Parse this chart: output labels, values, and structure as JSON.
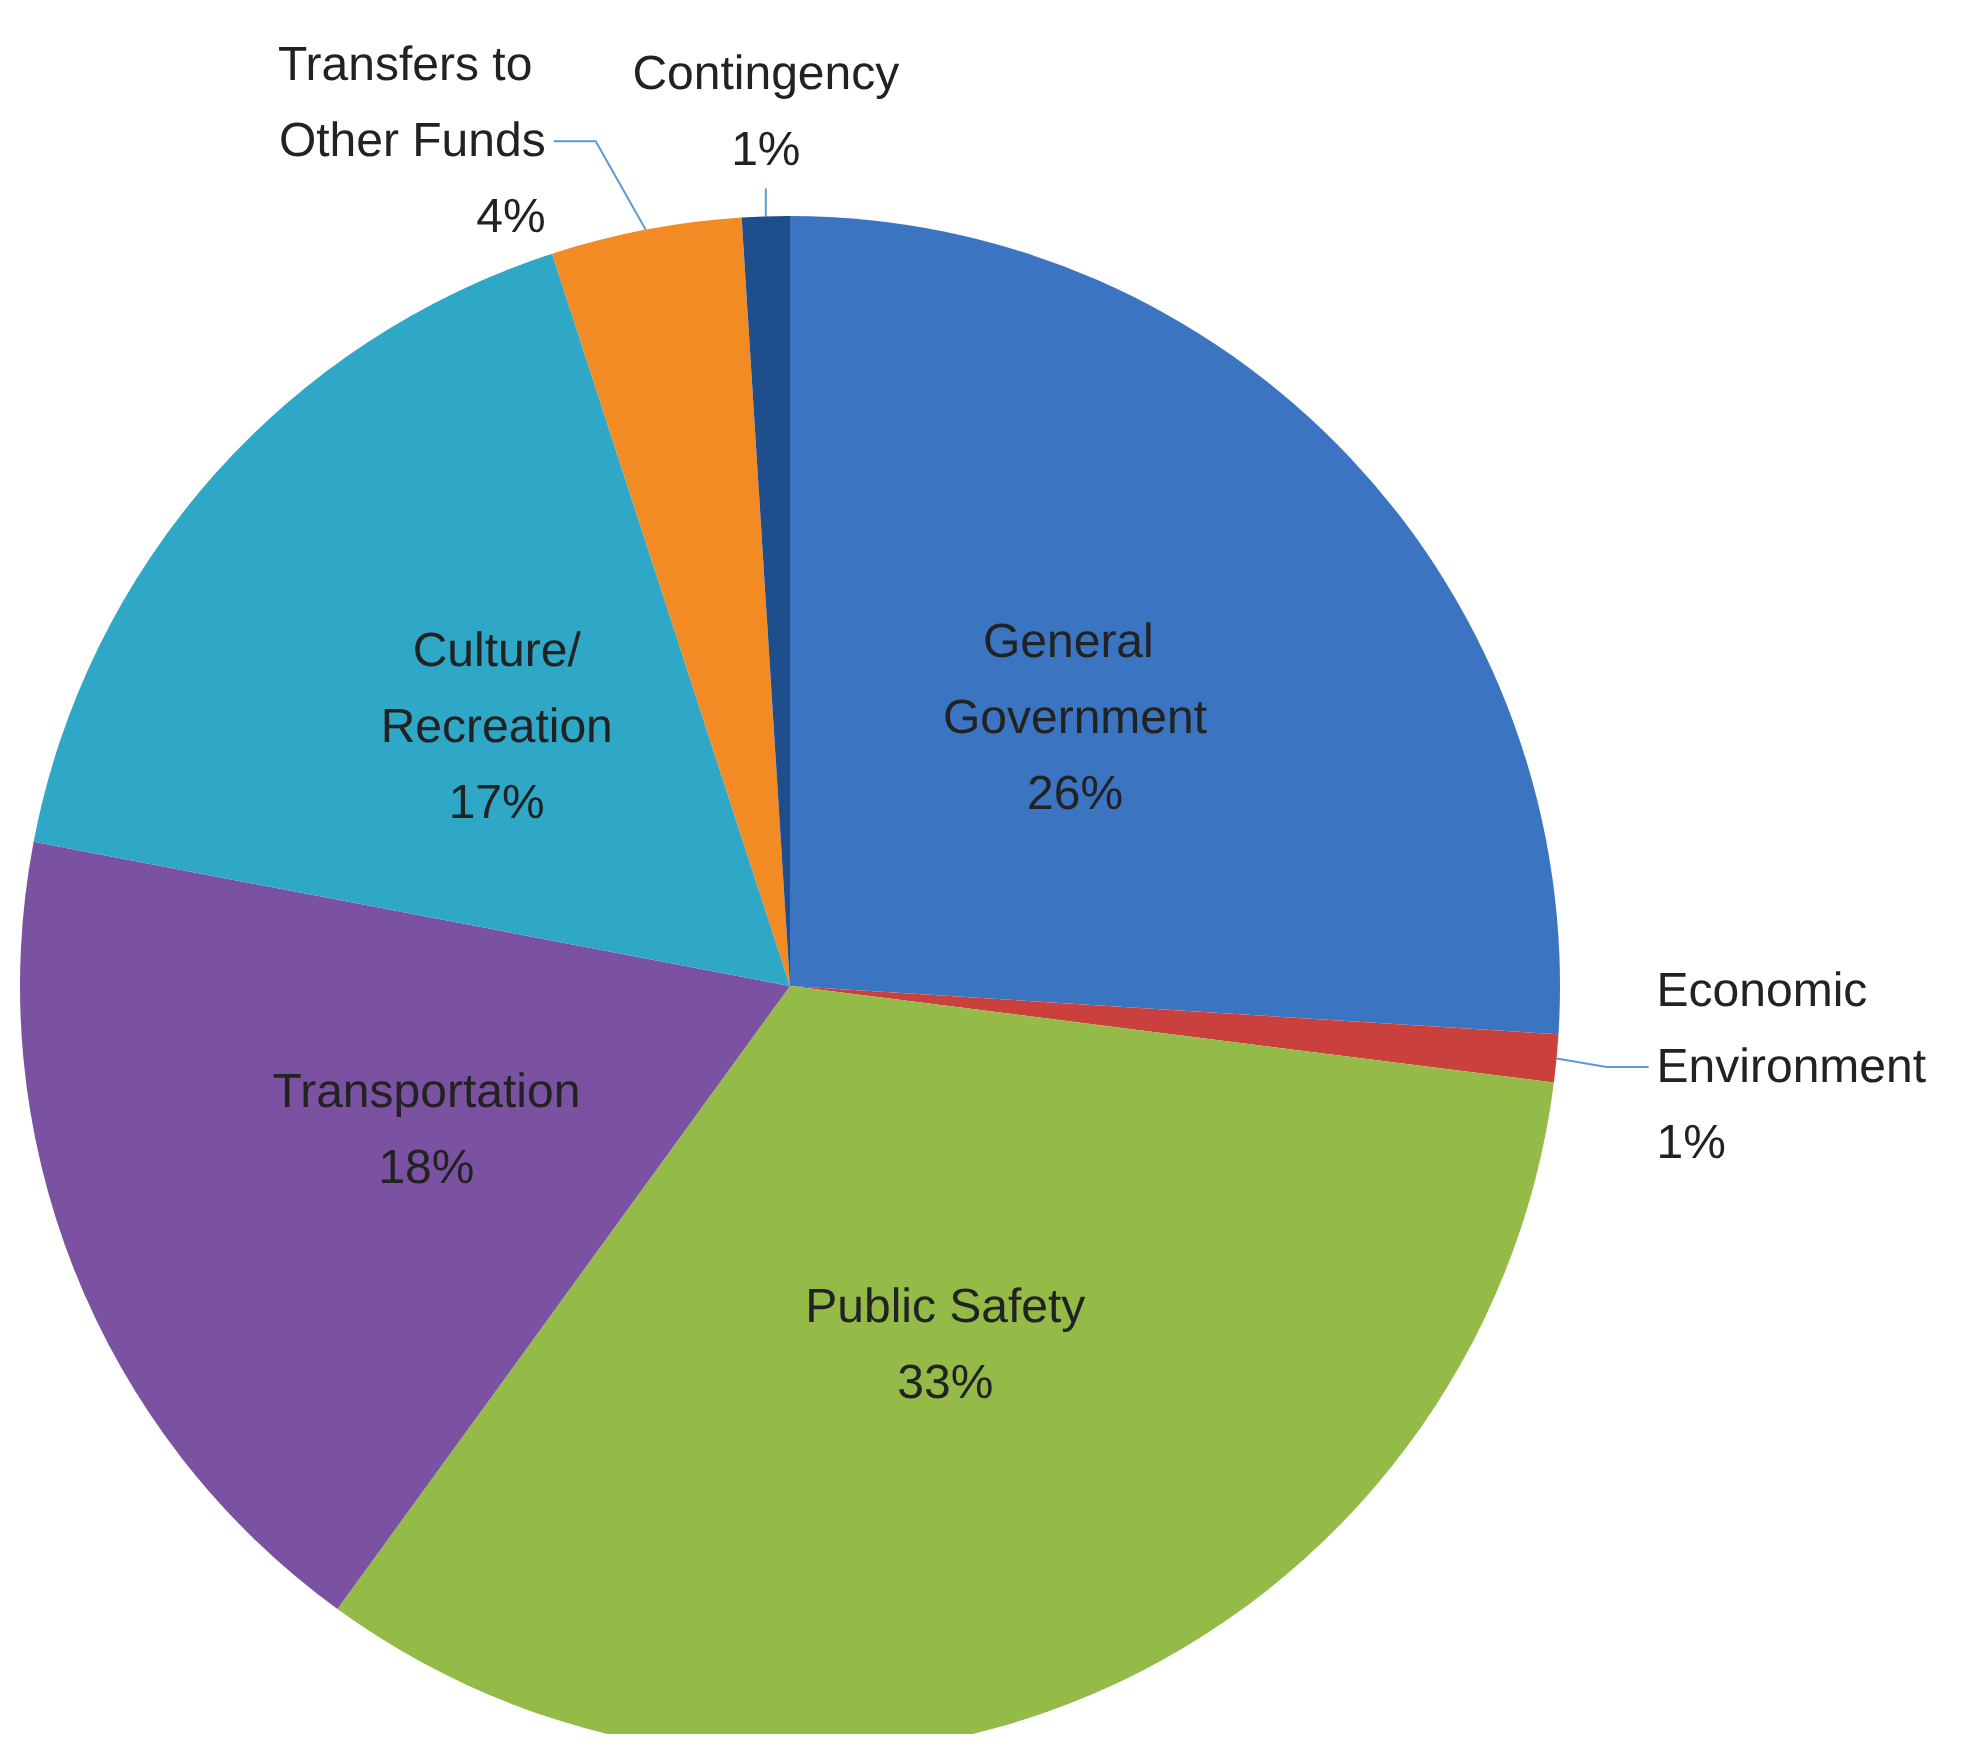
{
  "chart_data": {
    "type": "pie",
    "categories": [
      "General Government",
      "Economic Environment",
      "Public Safety",
      "Transportation",
      "Culture/Recreation",
      "Transfers to Other Funds",
      "Contingency"
    ],
    "values": [
      26,
      1,
      33,
      18,
      17,
      4,
      1
    ],
    "value_labels": [
      "26%",
      "1%",
      "33%",
      "18%",
      "17%",
      "4%",
      "1%"
    ],
    "colors": [
      "#3b75c2",
      "#c9403c",
      "#94bb48",
      "#7a52a1",
      "#2fa7c7",
      "#f28b24",
      "#1f4e8c"
    ],
    "legend": false
  }
}
